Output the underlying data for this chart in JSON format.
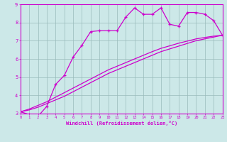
{
  "xlabel": "Windchill (Refroidissement éolien,°C)",
  "bg_color": "#cce8e8",
  "line_color": "#cc00cc",
  "grid_color": "#99bbbb",
  "xlim": [
    0,
    23
  ],
  "ylim": [
    3,
    9
  ],
  "jagged_x": [
    0,
    1,
    2,
    3,
    4,
    5,
    6,
    7,
    8,
    9,
    10,
    11,
    12,
    13,
    14,
    15,
    16,
    17,
    18,
    19,
    20,
    21,
    22,
    23
  ],
  "jagged_y": [
    3.1,
    2.95,
    2.85,
    3.4,
    4.6,
    5.1,
    6.1,
    6.75,
    7.5,
    7.55,
    7.55,
    7.55,
    8.3,
    8.8,
    8.45,
    8.45,
    8.8,
    7.9,
    7.8,
    8.55,
    8.55,
    8.45,
    8.1,
    7.3
  ],
  "smooth1_x": [
    0,
    1,
    2,
    3,
    4,
    5,
    6,
    7,
    8,
    9,
    10,
    11,
    12,
    13,
    14,
    15,
    16,
    17,
    18,
    19,
    20,
    21,
    22,
    23
  ],
  "smooth1_y": [
    3.1,
    3.2,
    3.35,
    3.55,
    3.75,
    3.95,
    4.2,
    4.45,
    4.7,
    4.95,
    5.2,
    5.4,
    5.6,
    5.8,
    6.0,
    6.2,
    6.4,
    6.55,
    6.7,
    6.85,
    7.0,
    7.1,
    7.2,
    7.3
  ],
  "smooth2_x": [
    0,
    1,
    2,
    3,
    4,
    5,
    6,
    7,
    8,
    9,
    10,
    11,
    12,
    13,
    14,
    15,
    16,
    17,
    18,
    19,
    20,
    21,
    22,
    23
  ],
  "smooth2_y": [
    3.1,
    3.25,
    3.45,
    3.65,
    3.9,
    4.15,
    4.4,
    4.65,
    4.9,
    5.15,
    5.4,
    5.6,
    5.8,
    6.0,
    6.2,
    6.4,
    6.58,
    6.72,
    6.86,
    6.98,
    7.1,
    7.18,
    7.25,
    7.3
  ]
}
